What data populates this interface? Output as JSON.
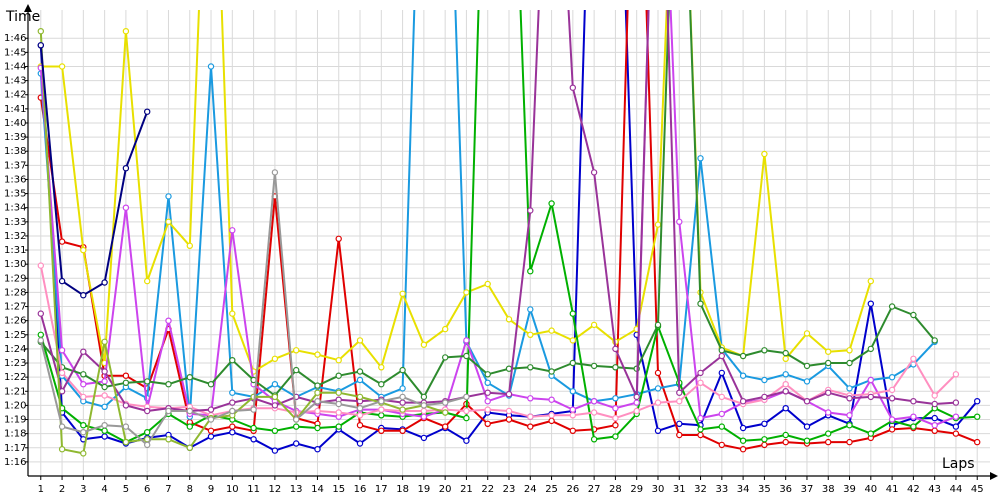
{
  "chart_data": {
    "type": "line",
    "title": "",
    "ylabel": "Time",
    "xlabel": "Laps",
    "x": [
      1,
      2,
      3,
      4,
      5,
      6,
      7,
      8,
      9,
      10,
      11,
      12,
      13,
      14,
      15,
      16,
      17,
      18,
      19,
      20,
      21,
      22,
      23,
      24,
      25,
      26,
      27,
      28,
      29,
      30,
      31,
      32,
      33,
      34,
      35,
      36,
      37,
      38,
      39,
      40,
      41,
      42,
      43,
      44,
      45
    ],
    "xlim": [
      0.4,
      45.6
    ],
    "ylim": [
      75,
      108
    ],
    "y_ticks": [
      76,
      77,
      78,
      79,
      80,
      81,
      82,
      83,
      84,
      85,
      86,
      87,
      88,
      89,
      90,
      91,
      92,
      93,
      94,
      95,
      96,
      97,
      98,
      99,
      100,
      101,
      102,
      103,
      104,
      105,
      106
    ],
    "y_tick_labels": [
      "1:16",
      "1:17",
      "1:18",
      "1:19",
      "1:20",
      "1:21",
      "1:22",
      "1:23",
      "1:24",
      "1:25",
      "1:26",
      "1:27",
      "1:28",
      "1:29",
      "1:30",
      "1:31",
      "1:32",
      "1:33",
      "1:34",
      "1:35",
      "1:36",
      "1:37",
      "1:38",
      "1:39",
      "1:40",
      "1:41",
      "1:42",
      "1:43",
      "1:44",
      "1:45",
      "1:46"
    ],
    "grid": true,
    "legend": "none",
    "series": [
      {
        "color": "#0000cc",
        "values": [
          105.5,
          79.5,
          77.6,
          77.8,
          77.3,
          77.7,
          77.9,
          77.0,
          77.8,
          78.1,
          77.6,
          76.8,
          77.3,
          76.9,
          78.3,
          77.3,
          78.4,
          78.3,
          77.7,
          78.4,
          77.5,
          79.5,
          79.3,
          79.2,
          79.4,
          79.6,
          130,
          130,
          85.0,
          78.2,
          78.7,
          78.6,
          82.3,
          78.4,
          78.7,
          79.8,
          78.5,
          79.3,
          78.7,
          87.2,
          78.6,
          79.1,
          79.1,
          78.5,
          80.3
        ]
      },
      {
        "color": "#e00000",
        "values": [
          101.8,
          91.6,
          91.2,
          82.1,
          82.1,
          81.2,
          85.4,
          78.8,
          78.2,
          78.5,
          78.2,
          94.8,
          79.1,
          78.7,
          91.8,
          78.6,
          78.2,
          78.2,
          79.1,
          78.5,
          80.1,
          78.7,
          79.0,
          78.5,
          78.9,
          78.2,
          78.3,
          78.6,
          130,
          82.3,
          77.9,
          77.9,
          77.2,
          76.9,
          77.2,
          77.4,
          77.3,
          77.4,
          77.4,
          77.7,
          78.3,
          78.4,
          78.2,
          78.0,
          77.4
        ]
      },
      {
        "color": "#1a9ae0",
        "values": [
          103.5,
          82.1,
          80.3,
          79.9,
          81.3,
          80.5,
          94.8,
          79.2,
          104.0,
          80.9,
          80.6,
          81.5,
          80.6,
          81.3,
          81.0,
          81.8,
          80.6,
          81.2,
          130,
          130,
          84.5,
          81.6,
          80.7,
          86.8,
          82.1,
          81.0,
          80.3,
          80.5,
          80.8,
          81.2,
          81.5,
          97.5,
          84.0,
          82.1,
          81.8,
          82.2,
          81.7,
          82.8,
          81.2,
          81.8,
          82.0,
          82.9,
          84.5,
          null,
          null
        ]
      },
      {
        "color": "#e8e000",
        "values": [
          104.0,
          104.0,
          91.0,
          83.0,
          106.5,
          88.8,
          93.0,
          91.3,
          130,
          86.5,
          82.4,
          83.3,
          83.9,
          83.6,
          83.2,
          84.6,
          82.7,
          87.9,
          84.3,
          85.4,
          88.0,
          88.6,
          86.1,
          85.0,
          85.3,
          84.6,
          85.7,
          84.5,
          85.4,
          92.8,
          130,
          88.0,
          84.1,
          83.5,
          97.8,
          83.3,
          85.1,
          83.8,
          83.9,
          88.8,
          null,
          null,
          null,
          null,
          null
        ]
      },
      {
        "color": "#00b000",
        "values": [
          85.0,
          79.8,
          78.6,
          78.2,
          77.4,
          78.1,
          79.4,
          78.5,
          79.3,
          79.0,
          78.4,
          78.2,
          78.5,
          78.4,
          78.5,
          79.5,
          79.3,
          79.2,
          79.4,
          79.5,
          79.1,
          130,
          130,
          89.5,
          94.3,
          86.5,
          77.6,
          77.8,
          79.4,
          85.6,
          81.6,
          78.3,
          78.5,
          77.5,
          77.6,
          77.9,
          77.5,
          78.0,
          78.6,
          78.0,
          78.9,
          78.5,
          79.8,
          79.1,
          79.2
        ]
      },
      {
        "color": "#cc44ee",
        "values": [
          103.9,
          83.9,
          81.5,
          81.7,
          94.0,
          79.8,
          86.0,
          79.4,
          79.3,
          92.4,
          81.5,
          80.3,
          79.6,
          79.4,
          79.2,
          79.7,
          79.7,
          79.4,
          79.2,
          79.7,
          84.6,
          80.3,
          80.8,
          80.5,
          80.4,
          79.7,
          80.3,
          79.8,
          80.2,
          130,
          93.0,
          79.1,
          79.4,
          80.2,
          80.4,
          81.0,
          80.3,
          79.5,
          79.3,
          81.8,
          79.0,
          79.2,
          78.6,
          79.2,
          null
        ]
      },
      {
        "color": "#2e8b2e",
        "values": [
          84.5,
          82.7,
          82.2,
          81.3,
          81.6,
          81.7,
          81.5,
          82.0,
          81.5,
          83.2,
          81.8,
          80.7,
          82.5,
          81.4,
          82.1,
          82.4,
          81.5,
          82.5,
          80.6,
          83.4,
          83.5,
          82.2,
          82.6,
          82.7,
          82.4,
          83.0,
          82.8,
          82.7,
          82.6,
          85.7,
          130,
          87.2,
          83.9,
          83.5,
          83.9,
          83.7,
          82.8,
          83.0,
          83.0,
          84.0,
          87.0,
          86.4,
          84.6,
          null,
          null
        ]
      },
      {
        "color": "#ff8fc0",
        "values": [
          89.9,
          82.3,
          80.6,
          80.7,
          80.1,
          79.9,
          79.8,
          79.9,
          79.3,
          79.6,
          79.8,
          79.8,
          79.5,
          79.6,
          79.5,
          79.3,
          79.7,
          79.6,
          79.6,
          79.7,
          79.6,
          79.7,
          79.6,
          79.2,
          79.3,
          79.3,
          79.5,
          79.1,
          79.6,
          80.2,
          80.3,
          81.6,
          80.6,
          80.1,
          80.4,
          81.5,
          80.3,
          81.1,
          80.7,
          80.8,
          81.1,
          83.3,
          80.7,
          82.2,
          null
        ]
      },
      {
        "color": "#993399",
        "values": [
          86.5,
          81.0,
          83.8,
          82.4,
          80.0,
          79.6,
          79.8,
          79.6,
          79.7,
          80.2,
          80.5,
          80.0,
          80.6,
          80.2,
          80.4,
          80.3,
          80.4,
          80.2,
          80.2,
          80.3,
          80.6,
          80.9,
          80.8,
          93.8,
          130,
          102.5,
          96.5,
          84.0,
          80.6,
          130,
          80.9,
          82.3,
          83.5,
          80.3,
          80.6,
          81.0,
          80.3,
          80.9,
          80.5,
          80.6,
          80.5,
          80.3,
          80.1,
          80.2,
          null
        ]
      },
      {
        "color": "#8fb830",
        "values": [
          106.5,
          76.9,
          76.6,
          84.5,
          77.4,
          77.6,
          77.6,
          77.0,
          79.1,
          79.3,
          80.6,
          80.6,
          79.0,
          80.9,
          80.9,
          80.6,
          80.2,
          79.7,
          80.0,
          79.5,
          null,
          null,
          null,
          null,
          null,
          null,
          null,
          null,
          null,
          null,
          null,
          null,
          null,
          null,
          null,
          null,
          null,
          null,
          null,
          null,
          null,
          null,
          null,
          null,
          null
        ]
      },
      {
        "color": "#999999",
        "values": [
          84.6,
          78.5,
          78.1,
          78.6,
          78.5,
          77.2,
          79.6,
          79.6,
          79.0,
          79.6,
          79.7,
          96.5,
          79.0,
          80.3,
          80.1,
          79.8,
          80.3,
          80.6,
          80.0,
          80.2,
          80.6,
          null,
          null,
          null,
          null,
          null,
          null,
          null,
          null,
          null,
          null,
          null,
          null,
          null,
          null,
          null,
          null,
          null,
          null,
          null,
          null,
          null,
          null,
          null,
          null
        ]
      },
      {
        "color": "#000080",
        "values": [
          105.5,
          88.8,
          87.8,
          88.7,
          96.8,
          100.8,
          null,
          null,
          null,
          null,
          null,
          null,
          null,
          null,
          null,
          null,
          null,
          null,
          null,
          null,
          null,
          null,
          null,
          null,
          null,
          null,
          null,
          null,
          null,
          null,
          null,
          null,
          null,
          null,
          null,
          null,
          null,
          null,
          null,
          null,
          null,
          null,
          null,
          null,
          null
        ]
      }
    ]
  }
}
